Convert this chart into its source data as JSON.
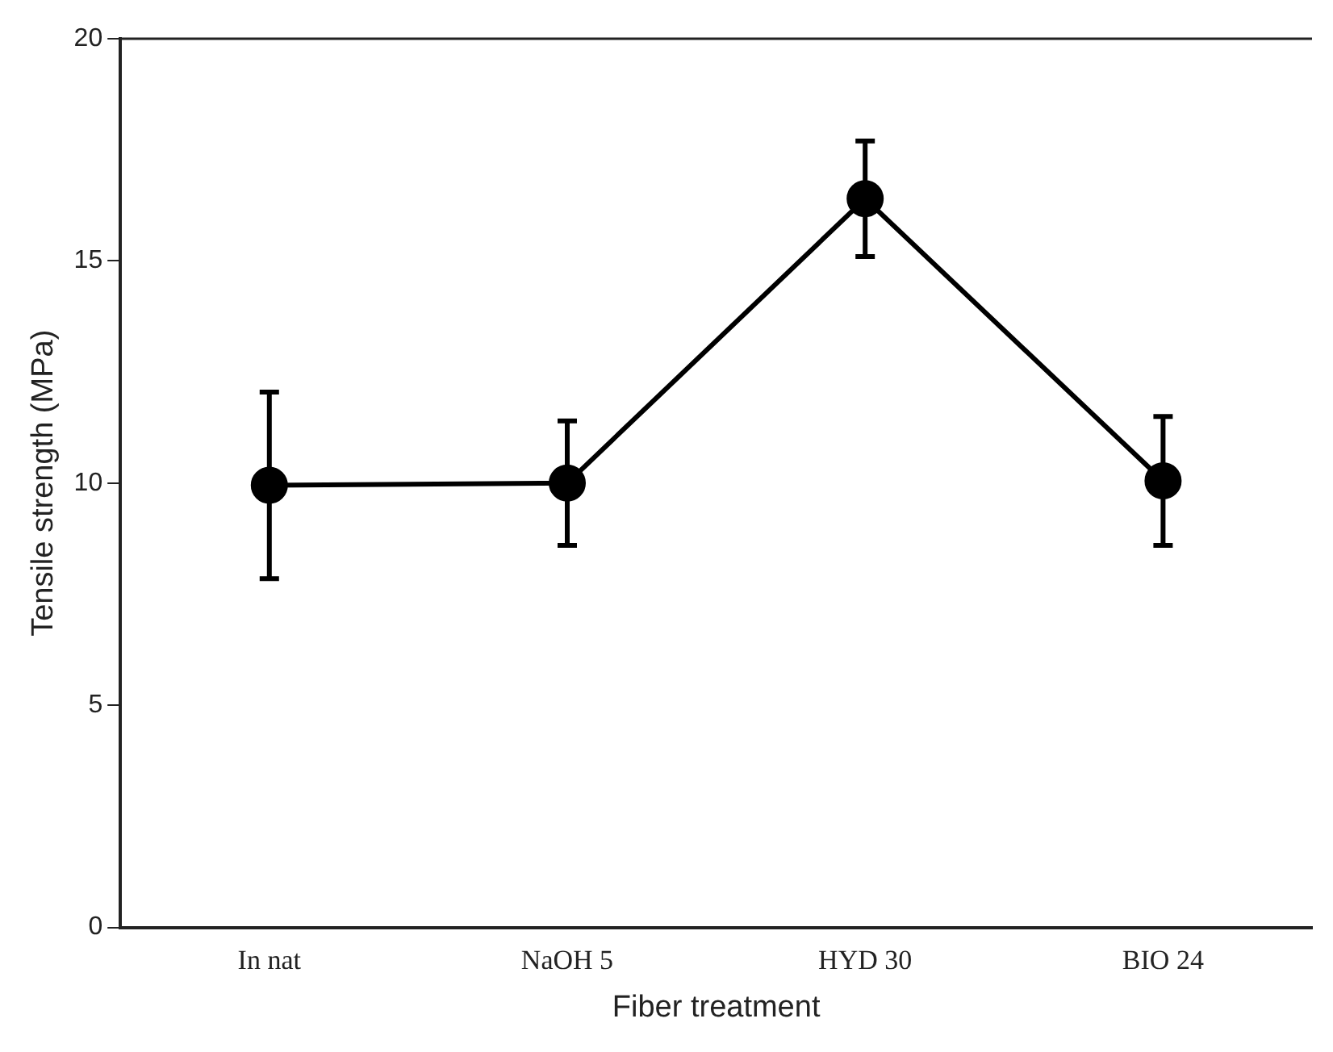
{
  "chart_data": {
    "type": "line",
    "xlabel": "Fiber treatment",
    "ylabel": "Tensile strength (MPa)",
    "categories": [
      "In nat",
      "NaOH 5",
      "HYD 30",
      "BIO 24"
    ],
    "series": [
      {
        "color": "#000000",
        "values": [
          9.95,
          10.0,
          16.4,
          10.05
        ],
        "errors": [
          2.1,
          1.4,
          1.3,
          1.45
        ]
      }
    ],
    "ylim": [
      0,
      20
    ],
    "yticks": [
      0,
      5,
      10,
      15,
      20
    ],
    "marker": "circle",
    "line_style": "solid",
    "legend": false
  }
}
